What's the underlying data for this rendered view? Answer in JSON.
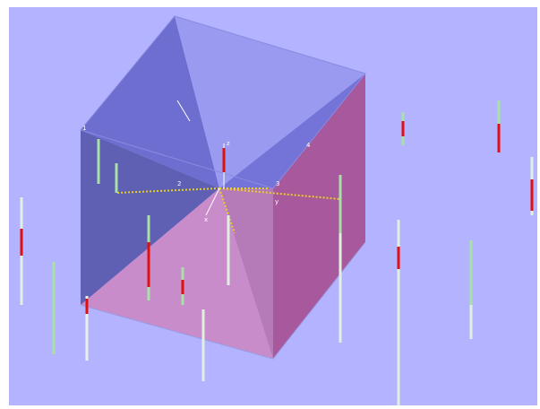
{
  "scene": {
    "axis_labels": [
      "z",
      "x",
      "y"
    ],
    "corner_labels": [
      "1",
      "2",
      "3",
      "4"
    ]
  }
}
